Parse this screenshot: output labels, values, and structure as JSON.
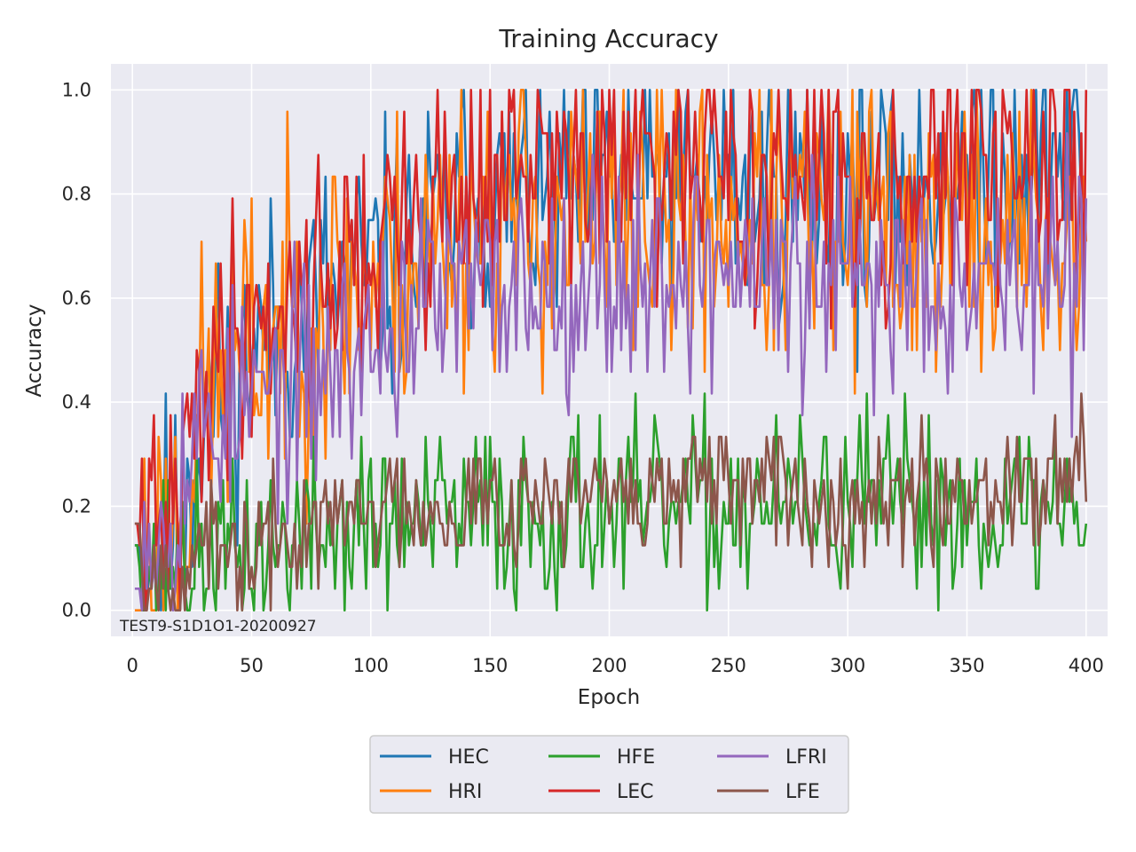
{
  "chart_data": {
    "type": "line",
    "title": "Training Accuracy",
    "xlabel": "Epoch",
    "ylabel": "Accuracy",
    "annotation": "TEST9-S1D1O1-20200927",
    "xlim": [
      -9,
      409
    ],
    "ylim": [
      -0.05,
      1.05
    ],
    "xticks": [
      0,
      50,
      100,
      150,
      200,
      250,
      300,
      350,
      400
    ],
    "xtick_labels": [
      "0",
      "50",
      "100",
      "150",
      "200",
      "250",
      "300",
      "350",
      "400"
    ],
    "yticks": [
      0.0,
      0.2,
      0.4,
      0.6,
      0.8,
      1.0
    ],
    "ytick_labels": [
      "0.0",
      "0.2",
      "0.4",
      "0.6",
      "0.8",
      "1.0"
    ],
    "grid": true,
    "legend_position": "bottom-center",
    "legend_columns": 3,
    "series": [
      {
        "name": "HEC",
        "color": "#1f77b4",
        "noise": 0.13,
        "seed": 11,
        "profile": [
          [
            1,
            0.13
          ],
          [
            3,
            0.12
          ],
          [
            12,
            0.13
          ],
          [
            20,
            0.16
          ],
          [
            30,
            0.4
          ],
          [
            50,
            0.5
          ],
          [
            80,
            0.6
          ],
          [
            110,
            0.66
          ],
          [
            140,
            0.78
          ],
          [
            180,
            0.8
          ],
          [
            250,
            0.82
          ],
          [
            300,
            0.8
          ],
          [
            350,
            0.84
          ],
          [
            400,
            0.88
          ]
        ]
      },
      {
        "name": "HRI",
        "color": "#ff7f0e",
        "noise": 0.15,
        "seed": 23,
        "profile": [
          [
            1,
            0.0
          ],
          [
            3,
            0.0
          ],
          [
            5,
            0.12
          ],
          [
            12,
            0.13
          ],
          [
            20,
            0.2
          ],
          [
            30,
            0.4
          ],
          [
            50,
            0.5
          ],
          [
            80,
            0.6
          ],
          [
            110,
            0.65
          ],
          [
            140,
            0.75
          ],
          [
            180,
            0.75
          ],
          [
            250,
            0.76
          ],
          [
            300,
            0.73
          ],
          [
            350,
            0.74
          ],
          [
            400,
            0.7
          ]
        ]
      },
      {
        "name": "HFE",
        "color": "#2ca02c",
        "noise": 0.09,
        "seed": 37,
        "profile": [
          [
            1,
            0.13
          ],
          [
            3,
            0.08
          ],
          [
            15,
            0.1
          ],
          [
            30,
            0.08
          ],
          [
            40,
            0.1
          ],
          [
            60,
            0.13
          ],
          [
            100,
            0.16
          ],
          [
            150,
            0.18
          ],
          [
            200,
            0.19
          ],
          [
            300,
            0.2
          ],
          [
            400,
            0.2
          ]
        ]
      },
      {
        "name": "LEC",
        "color": "#d62728",
        "noise": 0.12,
        "seed": 41,
        "profile": [
          [
            1,
            0.17
          ],
          [
            3,
            0.13
          ],
          [
            12,
            0.13
          ],
          [
            20,
            0.2
          ],
          [
            30,
            0.45
          ],
          [
            50,
            0.56
          ],
          [
            80,
            0.64
          ],
          [
            110,
            0.72
          ],
          [
            140,
            0.82
          ],
          [
            180,
            0.85
          ],
          [
            250,
            0.84
          ],
          [
            300,
            0.82
          ],
          [
            350,
            0.84
          ],
          [
            400,
            0.86
          ]
        ]
      },
      {
        "name": "LFRI",
        "color": "#9467bd",
        "noise": 0.11,
        "seed": 53,
        "profile": [
          [
            1,
            0.04
          ],
          [
            3,
            0.04
          ],
          [
            4,
            0.17
          ],
          [
            14,
            0.17
          ],
          [
            20,
            0.25
          ],
          [
            30,
            0.35
          ],
          [
            50,
            0.4
          ],
          [
            80,
            0.45
          ],
          [
            110,
            0.55
          ],
          [
            140,
            0.62
          ],
          [
            180,
            0.64
          ],
          [
            250,
            0.66
          ],
          [
            300,
            0.62
          ],
          [
            350,
            0.66
          ],
          [
            400,
            0.62
          ]
        ]
      },
      {
        "name": "LFE",
        "color": "#8c564b",
        "noise": 0.06,
        "seed": 67,
        "profile": [
          [
            1,
            0.17
          ],
          [
            3,
            0.17
          ],
          [
            5,
            0.08
          ],
          [
            15,
            0.08
          ],
          [
            20,
            0.0
          ],
          [
            25,
            0.12
          ],
          [
            40,
            0.1
          ],
          [
            60,
            0.13
          ],
          [
            100,
            0.2
          ],
          [
            150,
            0.21
          ],
          [
            200,
            0.22
          ],
          [
            260,
            0.23
          ],
          [
            300,
            0.22
          ],
          [
            350,
            0.23
          ],
          [
            400,
            0.27
          ]
        ]
      }
    ]
  }
}
